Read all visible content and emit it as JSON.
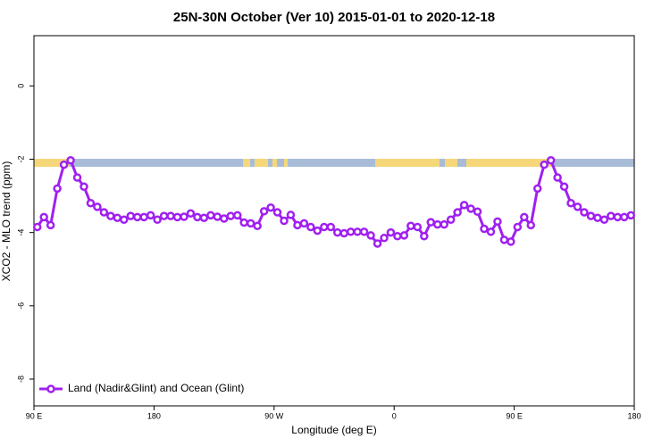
{
  "chart_data": {
    "type": "line",
    "title": "25N-30N October (Ver 10)   2015-01-01 to 2020-12-18",
    "x_label": "Longitude (deg E)",
    "y_label": "XCO2 - MLO trend (ppm)",
    "xlim": [
      90,
      540
    ],
    "ylim": [
      -8.73,
      1.37
    ],
    "xticks": [
      {
        "value": 90,
        "label": "90 E"
      },
      180,
      {
        "value": 270,
        "label": "90 W"
      },
      {
        "value": 360,
        "label": "0"
      },
      {
        "value": 450,
        "label": "90 E"
      },
      {
        "value": 540,
        "label": "180"
      }
    ],
    "yticks": [
      0,
      -2,
      -4,
      -6,
      -8
    ],
    "legend": "bottom-left",
    "x": [
      92.5,
      97.5,
      102.5,
      107.5,
      112.5,
      117.5,
      122.5,
      127.5,
      132.5,
      137.5,
      142.5,
      147.5,
      152.5,
      157.5,
      162.5,
      167.5,
      172.5,
      177.5,
      182.5,
      187.5,
      192.5,
      197.5,
      202.5,
      207.5,
      212.5,
      217.5,
      222.5,
      227.5,
      232.5,
      237.5,
      242.5,
      247.5,
      252.5,
      257.5,
      262.5,
      267.5,
      272.5,
      277.5,
      282.5,
      287.5,
      292.5,
      297.5,
      302.5,
      307.5,
      312.5,
      317.5,
      322.5,
      327.5,
      332.5,
      337.5,
      342.5,
      347.5,
      352.5,
      357.5,
      362.5,
      367.5,
      372.5,
      377.5,
      382.5,
      387.5,
      392.5,
      397.5,
      402.5,
      407.5,
      412.5,
      417.5,
      422.5,
      427.5,
      432.5,
      437.5,
      442.5,
      447.5,
      452.5,
      457.5,
      462.5,
      467.5,
      472.5,
      477.5,
      482.5,
      487.5,
      492.5,
      497.5,
      502.5,
      507.5,
      512.5,
      517.5,
      522.5,
      527.5,
      532.5,
      537.5
    ],
    "series": [
      {
        "name": "Land (Nadir&Glint) and Ocean (Glint)",
        "color": "#a020f0",
        "values": [
          -3.85,
          -3.58,
          -3.8,
          -2.8,
          -2.15,
          -2.03,
          -2.5,
          -2.75,
          -3.2,
          -3.3,
          -3.45,
          -3.55,
          -3.6,
          -3.65,
          -3.55,
          -3.58,
          -3.58,
          -3.53,
          -3.65,
          -3.55,
          -3.55,
          -3.58,
          -3.57,
          -3.48,
          -3.58,
          -3.6,
          -3.53,
          -3.57,
          -3.62,
          -3.55,
          -3.53,
          -3.73,
          -3.75,
          -3.82,
          -3.42,
          -3.32,
          -3.45,
          -3.68,
          -3.52,
          -3.8,
          -3.75,
          -3.85,
          -3.95,
          -3.85,
          -3.85,
          -4.0,
          -4.02,
          -3.98,
          -3.98,
          -3.98,
          -4.08,
          -4.3,
          -4.15,
          -4.0,
          -4.1,
          -4.08,
          -3.82,
          -3.85,
          -4.1,
          -3.72,
          -3.78,
          -3.78,
          -3.65,
          -3.45,
          -3.25,
          -3.35,
          -3.43,
          -3.9,
          -3.98,
          -3.7,
          -4.2,
          -4.25,
          -3.85,
          -3.58,
          -3.8,
          -2.8,
          -2.15,
          -2.03,
          -2.5,
          -2.75,
          -3.2,
          -3.3,
          -3.45,
          -3.55,
          -3.6,
          -3.65,
          -3.55,
          -3.58,
          -3.58,
          -3.53
        ]
      }
    ]
  }
}
